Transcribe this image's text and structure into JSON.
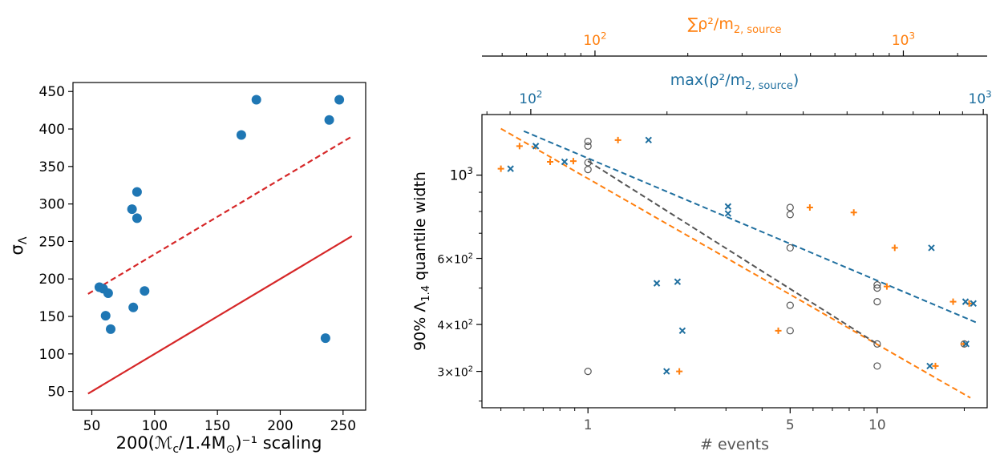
{
  "colors": {
    "blue": "#1f77b4",
    "red": "#d62728",
    "orange": "#ff7f0e",
    "gray": "#555555",
    "darkblue": "#1f6f9f",
    "axis": "#000000",
    "label_gray": "#555555"
  },
  "chart_data": [
    {
      "type": "scatter",
      "xlabel": "200(ℳ",
      "xlabel_sub": "c",
      "xlabel_mid": "/1.4M",
      "xlabel_sub2": "⊙",
      "xlabel_end": ")⁻¹ scaling",
      "ylabel": "σ",
      "ylabel_sub": "Λ",
      "xlim": [
        35,
        268
      ],
      "ylim": [
        25,
        462
      ],
      "xticks": [
        50,
        100,
        150,
        200,
        250
      ],
      "yticks": [
        50,
        100,
        150,
        200,
        250,
        300,
        350,
        400,
        450
      ],
      "points": [
        {
          "x": 56,
          "y": 189
        },
        {
          "x": 59,
          "y": 187
        },
        {
          "x": 61,
          "y": 151
        },
        {
          "x": 63,
          "y": 181
        },
        {
          "x": 65,
          "y": 133
        },
        {
          "x": 82,
          "y": 293
        },
        {
          "x": 83,
          "y": 162
        },
        {
          "x": 86,
          "y": 316
        },
        {
          "x": 86,
          "y": 281
        },
        {
          "x": 92,
          "y": 184
        },
        {
          "x": 169,
          "y": 392
        },
        {
          "x": 181,
          "y": 439
        },
        {
          "x": 236,
          "y": 121
        },
        {
          "x": 239,
          "y": 412
        },
        {
          "x": 247,
          "y": 439
        }
      ],
      "lines": [
        {
          "style": "solid",
          "color": "red",
          "x": [
            47,
            257
          ],
          "y": [
            47,
            257
          ]
        },
        {
          "style": "dashed",
          "color": "red",
          "x": [
            47,
            257
          ],
          "y": [
            180,
            390
          ]
        }
      ]
    },
    {
      "type": "scatter",
      "xscale": "log",
      "yscale": "log",
      "xlabel": "# events",
      "ylabel": "90% Λ",
      "ylabel_sub": "1.4",
      "ylabel_end": " quantile width",
      "xlim": [
        0.43,
        24
      ],
      "ylim": [
        240,
        1450
      ],
      "xticks": [
        {
          "v": 1,
          "label": "1"
        },
        {
          "v": 5,
          "label": "5"
        },
        {
          "v": 10,
          "label": "10"
        }
      ],
      "yticks": [
        {
          "v": 300,
          "base": "3×10",
          "exp": "2"
        },
        {
          "v": 400,
          "base": "4×10",
          "exp": "2"
        },
        {
          "v": 600,
          "base": "6×10",
          "exp": "2"
        },
        {
          "v": 1000,
          "base": "10",
          "exp": "3"
        }
      ],
      "top_axis_blue": {
        "label": "max(ρ²/m",
        "label_sub": "2, source",
        "label_end": ")",
        "ticks": [
          {
            "v": 100,
            "base": "10",
            "exp": "2"
          },
          {
            "v": 1000,
            "base": "10",
            "exp": "3"
          }
        ],
        "range": [
          78,
          1020
        ]
      },
      "top_axis_orange": {
        "label": "∑ρ²/m",
        "label_sub": "2, source",
        "ticks": [
          {
            "v": 100,
            "base": "10",
            "exp": "2"
          },
          {
            "v": 1000,
            "base": "10",
            "exp": "3"
          }
        ],
        "range": [
          43,
          1870
        ]
      },
      "series": [
        {
          "marker": "circle",
          "color": "gray",
          "points": [
            [
              1,
              1230
            ],
            [
              1,
              1195
            ],
            [
              1,
              1080
            ],
            [
              1,
              1035
            ],
            [
              1,
              300
            ],
            [
              5,
              820
            ],
            [
              5,
              785
            ],
            [
              5,
              640
            ],
            [
              5,
              450
            ],
            [
              5,
              385
            ],
            [
              10,
              510
            ],
            [
              10,
              500
            ],
            [
              10,
              460
            ],
            [
              10,
              355
            ],
            [
              10,
              310
            ],
            [
              20,
              355
            ]
          ]
        },
        {
          "marker": "plus",
          "color": "orange",
          "points": [
            [
              0.5,
              1040
            ],
            [
              0.58,
              1195
            ],
            [
              0.74,
              1085
            ],
            [
              0.89,
              1090
            ],
            [
              1.27,
              1240
            ],
            [
              2.07,
              300
            ],
            [
              4.55,
              385
            ],
            [
              5.85,
              820
            ],
            [
              8.3,
              795
            ],
            [
              10.8,
              505
            ],
            [
              11.5,
              640
            ],
            [
              15.9,
              310
            ],
            [
              18.3,
              460
            ],
            [
              19.9,
              355
            ],
            [
              20.8,
              455
            ]
          ]
        },
        {
          "marker": "x",
          "color": "darkblue",
          "points": [
            [
              0.54,
              1040
            ],
            [
              0.66,
              1195
            ],
            [
              0.83,
              1085
            ],
            [
              1.62,
              1240
            ],
            [
              1.73,
              515
            ],
            [
              1.87,
              300
            ],
            [
              2.04,
              520
            ],
            [
              2.12,
              385
            ],
            [
              3.05,
              825
            ],
            [
              3.05,
              790
            ],
            [
              15.2,
              310
            ],
            [
              15.4,
              640
            ],
            [
              20.2,
              460
            ],
            [
              20.3,
              355
            ],
            [
              21.5,
              455
            ]
          ]
        }
      ],
      "fits": [
        {
          "color": "darkblue",
          "x": [
            0.6,
            22
          ],
          "y": [
            1310,
            405
          ]
        },
        {
          "color": "orange",
          "x": [
            0.5,
            21
          ],
          "y": [
            1330,
            255
          ]
        },
        {
          "color": "gray",
          "x": [
            1,
            10
          ],
          "y": [
            1090,
            355
          ]
        }
      ]
    }
  ]
}
